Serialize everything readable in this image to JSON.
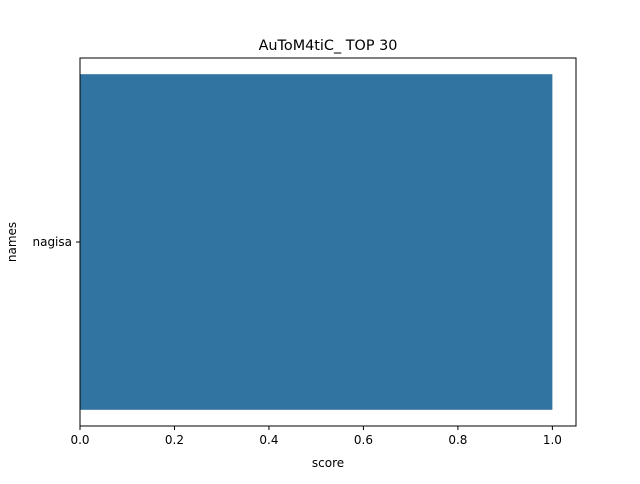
{
  "chart_data": {
    "type": "bar",
    "orientation": "horizontal",
    "title": "AuToM4tiC_ TOP 30",
    "xlabel": "score",
    "ylabel": "names",
    "categories": [
      "nagisa"
    ],
    "values": [
      1.0
    ],
    "xlim": [
      0.0,
      1.05
    ],
    "xticks": [
      0.0,
      0.2,
      0.4,
      0.6,
      0.8,
      1.0
    ],
    "xtick_labels": [
      "0.0",
      "0.2",
      "0.4",
      "0.6",
      "0.8",
      "1.0"
    ],
    "grid": false,
    "bar_color": "#3274a1"
  }
}
